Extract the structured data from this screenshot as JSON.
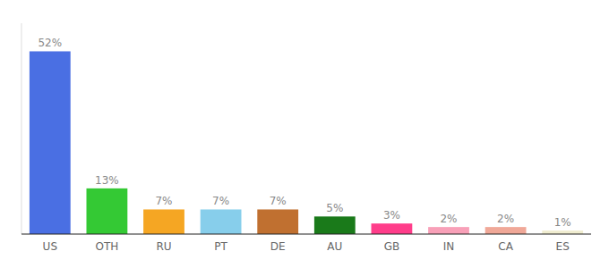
{
  "chart_data": {
    "type": "bar",
    "categories": [
      "US",
      "OTH",
      "RU",
      "PT",
      "DE",
      "AU",
      "GB",
      "IN",
      "CA",
      "ES"
    ],
    "values": [
      52,
      13,
      7,
      7,
      7,
      5,
      3,
      2,
      2,
      1
    ],
    "value_labels": [
      "52%",
      "13%",
      "7%",
      "7%",
      "7%",
      "5%",
      "3%",
      "2%",
      "2%",
      "1%"
    ],
    "colors": [
      "#4A6FE3",
      "#34C934",
      "#F5A623",
      "#87CEEB",
      "#C07030",
      "#1A7A1A",
      "#FF3D8A",
      "#F8A0B8",
      "#F0A898",
      "#F0EDD0"
    ],
    "ylim": [
      0,
      60
    ],
    "data_labels": true,
    "tick_labels": "x",
    "grid": false
  }
}
